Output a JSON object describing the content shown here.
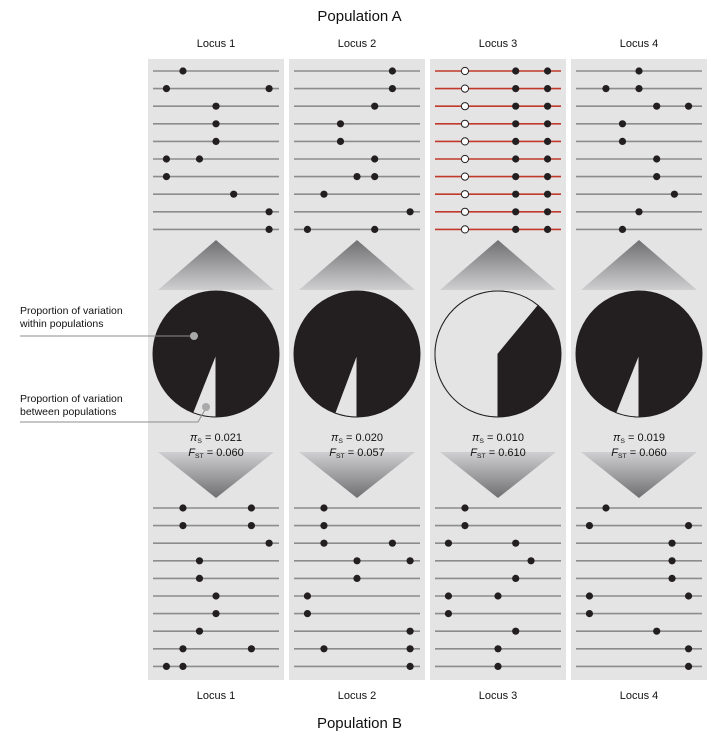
{
  "population_top": "Population A",
  "population_bottom": "Population B",
  "within_label": "Proportion of variation within populations",
  "between_label": "Proportion of variation between populations",
  "pi_symbol": "π",
  "pi_sub": "S",
  "fst_symbol": "F",
  "fst_sub": "ST",
  "colors": {
    "panel": "#e4e4e5",
    "dark": "#231f20",
    "light": "#e4e4e5",
    "line": "#8c8c8c",
    "red_line": "#c0392b"
  },
  "loci": [
    {
      "name": "Locus 1",
      "pi_s": "0.021",
      "f_st": "0.060",
      "between_fraction": 0.06,
      "top": {
        "red_lines": false,
        "hollow_sites": [],
        "snps": [
          [
            0.22
          ],
          [
            0.08,
            0.95
          ],
          [
            0.5
          ],
          [
            0.5
          ],
          [
            0.5
          ],
          [
            0.08,
            0.36
          ],
          [
            0.08
          ],
          [
            0.65
          ],
          [
            0.95
          ],
          [
            0.95
          ]
        ]
      },
      "bottom": {
        "snps": [
          [
            0.22,
            0.8
          ],
          [
            0.22,
            0.8
          ],
          [
            0.95
          ],
          [
            0.36
          ],
          [
            0.36
          ],
          [
            0.5
          ],
          [
            0.5
          ],
          [
            0.36
          ],
          [
            0.22,
            0.8
          ],
          [
            0.08,
            0.22
          ]
        ]
      }
    },
    {
      "name": "Locus 2",
      "pi_s": "0.020",
      "f_st": "0.057",
      "between_fraction": 0.057,
      "top": {
        "red_lines": false,
        "hollow_sites": [],
        "snps": [
          [
            0.8
          ],
          [
            0.8
          ],
          [
            0.65
          ],
          [
            0.36
          ],
          [
            0.36
          ],
          [
            0.65
          ],
          [
            0.5,
            0.65
          ],
          [
            0.22
          ],
          [
            0.95
          ],
          [
            0.08,
            0.65
          ]
        ]
      },
      "bottom": {
        "snps": [
          [
            0.22
          ],
          [
            0.22
          ],
          [
            0.22,
            0.8
          ],
          [
            0.5,
            0.95
          ],
          [
            0.5
          ],
          [
            0.08
          ],
          [
            0.08
          ],
          [
            0.95
          ],
          [
            0.22,
            0.95
          ],
          [
            0.95
          ]
        ]
      }
    },
    {
      "name": "Locus 3",
      "pi_s": "0.010",
      "f_st": "0.610",
      "between_fraction": 0.61,
      "top": {
        "red_lines": true,
        "hollow_sites": [
          0.22
        ],
        "snps": [
          [
            0.65,
            0.92
          ],
          [
            0.65,
            0.92
          ],
          [
            0.65,
            0.92
          ],
          [
            0.65,
            0.92
          ],
          [
            0.65,
            0.92
          ],
          [
            0.65,
            0.92
          ],
          [
            0.65,
            0.92
          ],
          [
            0.65,
            0.92
          ],
          [
            0.65,
            0.92
          ],
          [
            0.65,
            0.92
          ]
        ]
      },
      "bottom": {
        "snps": [
          [
            0.22
          ],
          [
            0.22
          ],
          [
            0.08,
            0.65
          ],
          [
            0.78
          ],
          [
            0.65
          ],
          [
            0.08,
            0.5
          ],
          [
            0.08
          ],
          [
            0.65
          ],
          [
            0.5
          ],
          [
            0.5
          ]
        ]
      }
    },
    {
      "name": "Locus 4",
      "pi_s": "0.019",
      "f_st": "0.060",
      "between_fraction": 0.06,
      "top": {
        "red_lines": false,
        "hollow_sites": [],
        "snps": [
          [
            0.5
          ],
          [
            0.22,
            0.5
          ],
          [
            0.65,
            0.92
          ],
          [
            0.36
          ],
          [
            0.36
          ],
          [
            0.65
          ],
          [
            0.65
          ],
          [
            0.8
          ],
          [
            0.5
          ],
          [
            0.36
          ]
        ]
      },
      "bottom": {
        "snps": [
          [
            0.22
          ],
          [
            0.08,
            0.92
          ],
          [
            0.78
          ],
          [
            0.78
          ],
          [
            0.78
          ],
          [
            0.08,
            0.92
          ],
          [
            0.08
          ],
          [
            0.65
          ],
          [
            0.92
          ],
          [
            0.92
          ]
        ]
      }
    }
  ]
}
